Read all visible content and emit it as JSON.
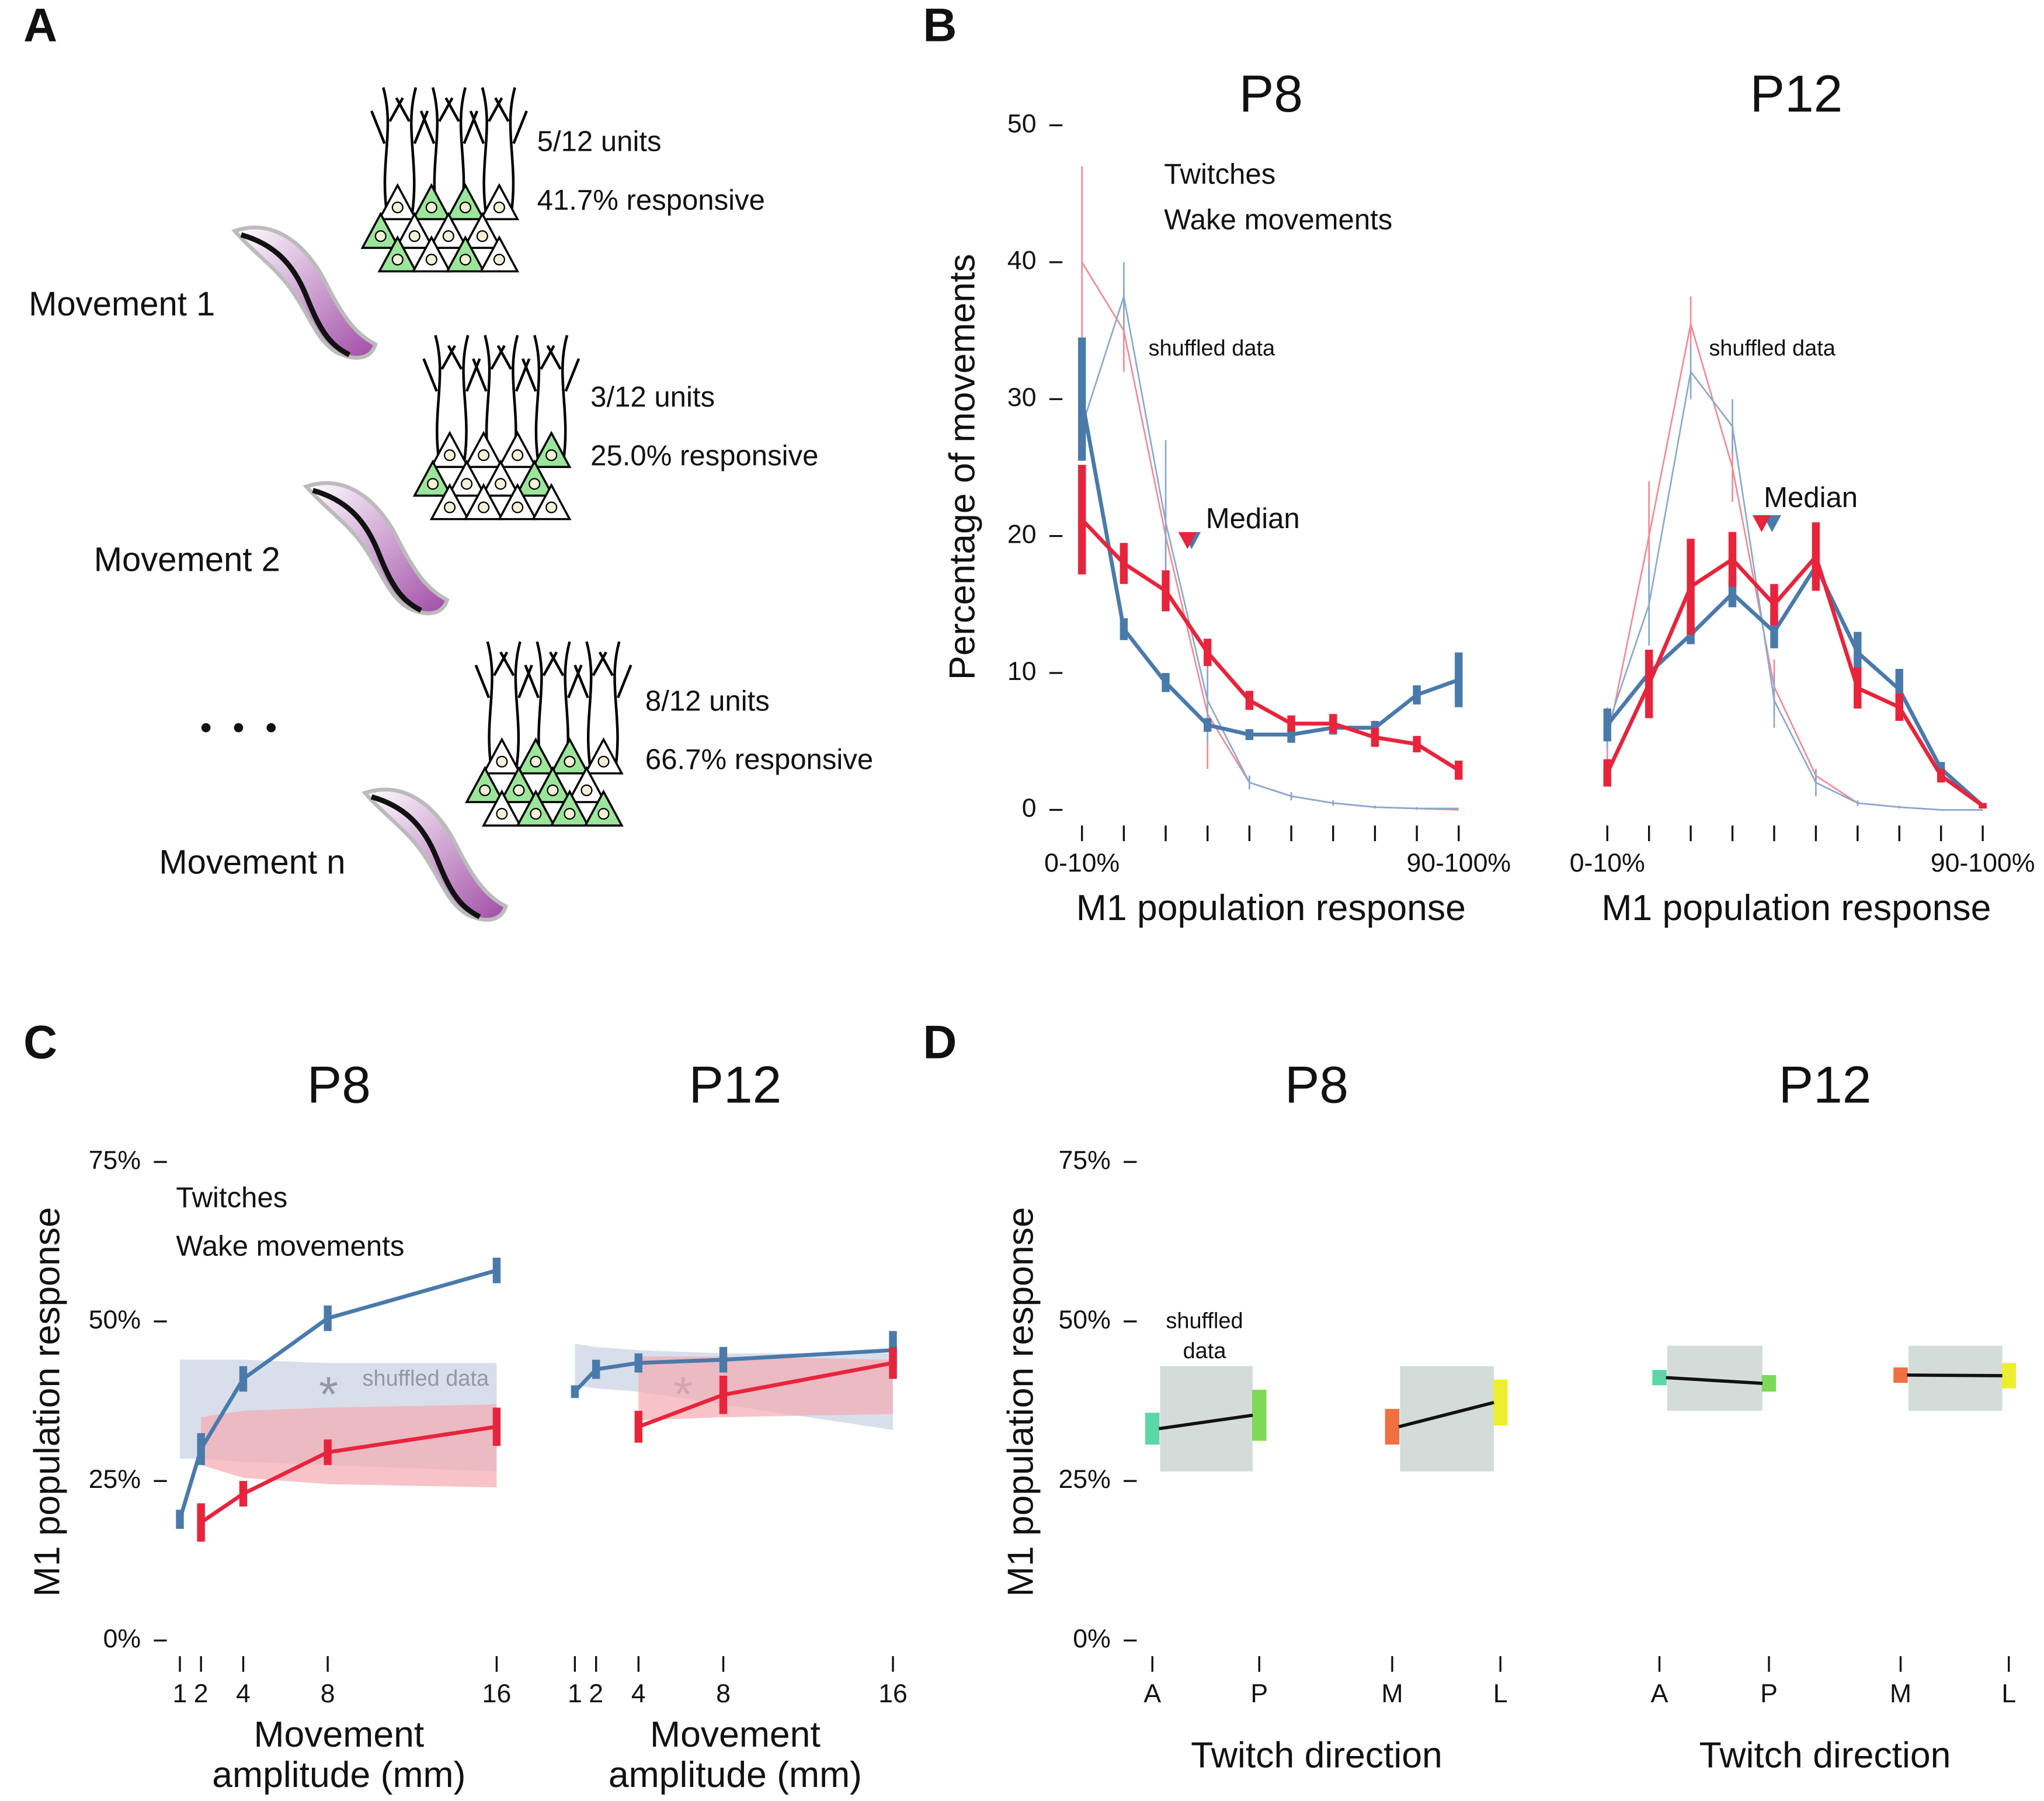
{
  "panel_labels": [
    "A",
    "B",
    "C",
    "D"
  ],
  "diagram": {
    "movements": [
      {
        "label": "Movement 1",
        "units": "5/12 units",
        "responsive": "41.7% responsive"
      },
      {
        "label": "Movement 2",
        "units": "3/12 units",
        "responsive": "25.0% responsive"
      },
      {
        "label": "Movement n",
        "units": "8/12 units",
        "responsive": "66.7% responsive"
      }
    ]
  },
  "chart_data": [
    {
      "type": "line",
      "title": "P8",
      "xlabel": "M1 population response",
      "ylabel": "Percentage of movements",
      "categories": [
        "0-10%",
        null,
        null,
        null,
        null,
        null,
        null,
        null,
        null,
        "90-100%"
      ],
      "ylim": [
        0,
        50
      ],
      "yticks": [
        0,
        10,
        20,
        30,
        40,
        50
      ],
      "annotations": [
        "shuffled data",
        "Median"
      ],
      "series": [
        {
          "color": "#f28a96",
          "style": "thin",
          "values": [
            40,
            35,
            20,
            7,
            2,
            1,
            0.5,
            0.2,
            0.1,
            0
          ],
          "errors": [
            7,
            3,
            2.5,
            4,
            0.5,
            0.3,
            0.2,
            0.1,
            0.1,
            0
          ]
        },
        {
          "color": "#8aa8cc",
          "style": "thin",
          "values": [
            28,
            37.5,
            21,
            8,
            2,
            1,
            0.5,
            0.2,
            0.1,
            0.1
          ],
          "errors": [
            2,
            2.5,
            6,
            3,
            0.5,
            0.3,
            0.2,
            0.1,
            0.1,
            0
          ]
        },
        {
          "name": "Twitches",
          "color": "#4a7aaa",
          "median": 2.62,
          "values": [
            30,
            13.2,
            9.3,
            6.2,
            5.5,
            5.5,
            6,
            6,
            8.4,
            9.5
          ],
          "errors": [
            4.5,
            0.8,
            0.7,
            0.5,
            0.4,
            0.6,
            0.5,
            0.5,
            0.7,
            2
          ]
        },
        {
          "name": "Wake movements",
          "color": "#e8243c",
          "median": 2.52,
          "values": [
            21.2,
            18,
            16,
            11.5,
            8,
            6.3,
            6.3,
            5.3,
            4.8,
            2.9
          ],
          "errors": [
            4,
            1.5,
            1.5,
            1,
            0.7,
            0.6,
            0.7,
            0.7,
            0.6,
            0.7
          ]
        }
      ]
    },
    {
      "type": "line",
      "title": "P12",
      "xlabel": "M1 population response",
      "categories": [
        "0-10%",
        null,
        null,
        null,
        null,
        null,
        null,
        null,
        null,
        "90-100%"
      ],
      "ylim": [
        0,
        50
      ],
      "annotations": [
        "shuffled data",
        "Median"
      ],
      "series": [
        {
          "color": "#f28a96",
          "style": "thin",
          "values": [
            5,
            20,
            35.5,
            25,
            9,
            2.5,
            0.5,
            0.2,
            0,
            0
          ],
          "errors": [
            2,
            4,
            2,
            2.5,
            2,
            0.5,
            0.2,
            0.1,
            0,
            0
          ]
        },
        {
          "color": "#8aa8cc",
          "style": "thin",
          "values": [
            6,
            15,
            32,
            28,
            8,
            2,
            0.5,
            0.2,
            0,
            0
          ],
          "errors": [
            1.5,
            3,
            2,
            2,
            2,
            1,
            0.2,
            0.1,
            0,
            0
          ]
        },
        {
          "color": "#4a7aaa",
          "median": 3.95,
          "values": [
            6.2,
            10,
            12.8,
            15.8,
            13,
            17.8,
            11.5,
            8.8,
            3,
            0.3
          ],
          "errors": [
            1.2,
            1,
            0.7,
            1,
            1.2,
            1,
            1.5,
            1.5,
            0.5,
            0.2
          ]
        },
        {
          "color": "#e8243c",
          "median": 3.7,
          "values": [
            2.7,
            9.2,
            16.3,
            18.3,
            15,
            18.5,
            8.9,
            7.5,
            2.5,
            0.3
          ],
          "errors": [
            1,
            2.5,
            3.5,
            2,
            1.5,
            2.5,
            1.5,
            1,
            0.5,
            0.2
          ]
        }
      ]
    },
    {
      "type": "line",
      "title": "P8",
      "xlabel": [
        "Movement",
        "amplitude (mm)"
      ],
      "ylabel": "M1 population response",
      "x": [
        1,
        2,
        4,
        8,
        16
      ],
      "xlim": [
        1,
        16
      ],
      "xticks": [
        1,
        2,
        4,
        8,
        16
      ],
      "ylim": [
        0,
        75
      ],
      "yticks": [
        {
          "value": 0,
          "label": "0%"
        },
        {
          "value": 25,
          "label": "25%"
        },
        {
          "value": 50,
          "label": "50%"
        },
        {
          "value": 75,
          "label": "75%"
        }
      ],
      "annotations": [
        "shuffled data",
        "*"
      ],
      "series": [
        {
          "name": "Twitches",
          "color": "#4a7aaa",
          "values": [
            19,
            30,
            41,
            50.5,
            58
          ],
          "errors": [
            1.5,
            2.5,
            2,
            2,
            2
          ],
          "band_color": "#c7d1e3",
          "band_lower": [
            28.5,
            28.5,
            28,
            27.5,
            26.5
          ],
          "band_upper": [
            44,
            44,
            44,
            43.5,
            43.5
          ]
        },
        {
          "name": "Wake movements",
          "color": "#e8243c",
          "values": [
            null,
            18.5,
            23,
            29.5,
            33.5
          ],
          "errors": [
            null,
            3,
            2,
            2,
            3
          ],
          "band_color": "#f4aab2",
          "band_lower": [
            null,
            27.5,
            25.5,
            24.5,
            24
          ],
          "band_upper": [
            null,
            35,
            36,
            36.5,
            37
          ]
        }
      ]
    },
    {
      "type": "line",
      "title": "P12",
      "xlabel": [
        "Movement",
        "amplitude (mm)"
      ],
      "x": [
        1,
        2,
        4,
        8,
        16
      ],
      "xlim": [
        1,
        16
      ],
      "xticks": [
        1,
        2,
        4,
        8,
        16
      ],
      "ylim": [
        0,
        75
      ],
      "annotations": [
        "*"
      ],
      "series": [
        {
          "color": "#4a7aaa",
          "values": [
            39,
            42.5,
            43.5,
            44,
            45.5
          ],
          "errors": [
            1,
            1.5,
            1.5,
            2,
            3
          ],
          "band_color": "#c7d1e3",
          "band_lower": [
            40,
            39.5,
            39,
            37,
            33
          ],
          "band_upper": [
            46.5,
            46,
            45.5,
            45,
            45
          ]
        },
        {
          "color": "#e8243c",
          "values": [
            null,
            null,
            33.5,
            38.5,
            43.5
          ],
          "errors": [
            null,
            null,
            2.5,
            3,
            2.5
          ],
          "band_color": "#f4aab2",
          "band_lower": [
            null,
            null,
            34.5,
            35,
            35.5
          ],
          "band_upper": [
            null,
            null,
            44.5,
            44.5,
            44
          ]
        }
      ]
    },
    {
      "type": "errorbar",
      "title": "P8",
      "xlabel": "Twitch direction",
      "ylabel": "M1 population response",
      "categories": [
        "A",
        "P",
        "M",
        "L"
      ],
      "ylim": [
        0,
        75
      ],
      "yticks": [
        {
          "value": 0,
          "label": "0%"
        },
        {
          "value": 25,
          "label": "25%"
        },
        {
          "value": 50,
          "label": "50%"
        },
        {
          "value": 75,
          "label": "75%"
        }
      ],
      "annotations": [
        "shuffled",
        "data"
      ],
      "shuffled_ranges": [
        {
          "lower": 26.5,
          "upper": 43
        },
        {
          "lower": 26.5,
          "upper": 43
        }
      ],
      "series": [
        {
          "values": [
            33.2,
            35.3,
            33.5,
            37.3
          ],
          "errors": [
            2.5,
            4,
            2.8,
            3.6
          ],
          "colors": [
            "#5dd6a8",
            "#7ed957",
            "#f07040",
            "#eeee30"
          ]
        }
      ]
    },
    {
      "type": "errorbar",
      "title": "P12",
      "xlabel": "Twitch direction",
      "categories": [
        "A",
        "P",
        "M",
        "L"
      ],
      "ylim": [
        0,
        75
      ],
      "shuffled_ranges": [
        {
          "lower": 36,
          "upper": 46.2
        },
        {
          "lower": 36,
          "upper": 46.2
        }
      ],
      "series": [
        {
          "values": [
            41.2,
            40.3,
            41.6,
            41.5
          ],
          "errors": [
            1.2,
            1.3,
            1.2,
            2
          ],
          "colors": [
            "#5dd6a8",
            "#7ed957",
            "#f07040",
            "#eeee30"
          ]
        }
      ]
    }
  ]
}
